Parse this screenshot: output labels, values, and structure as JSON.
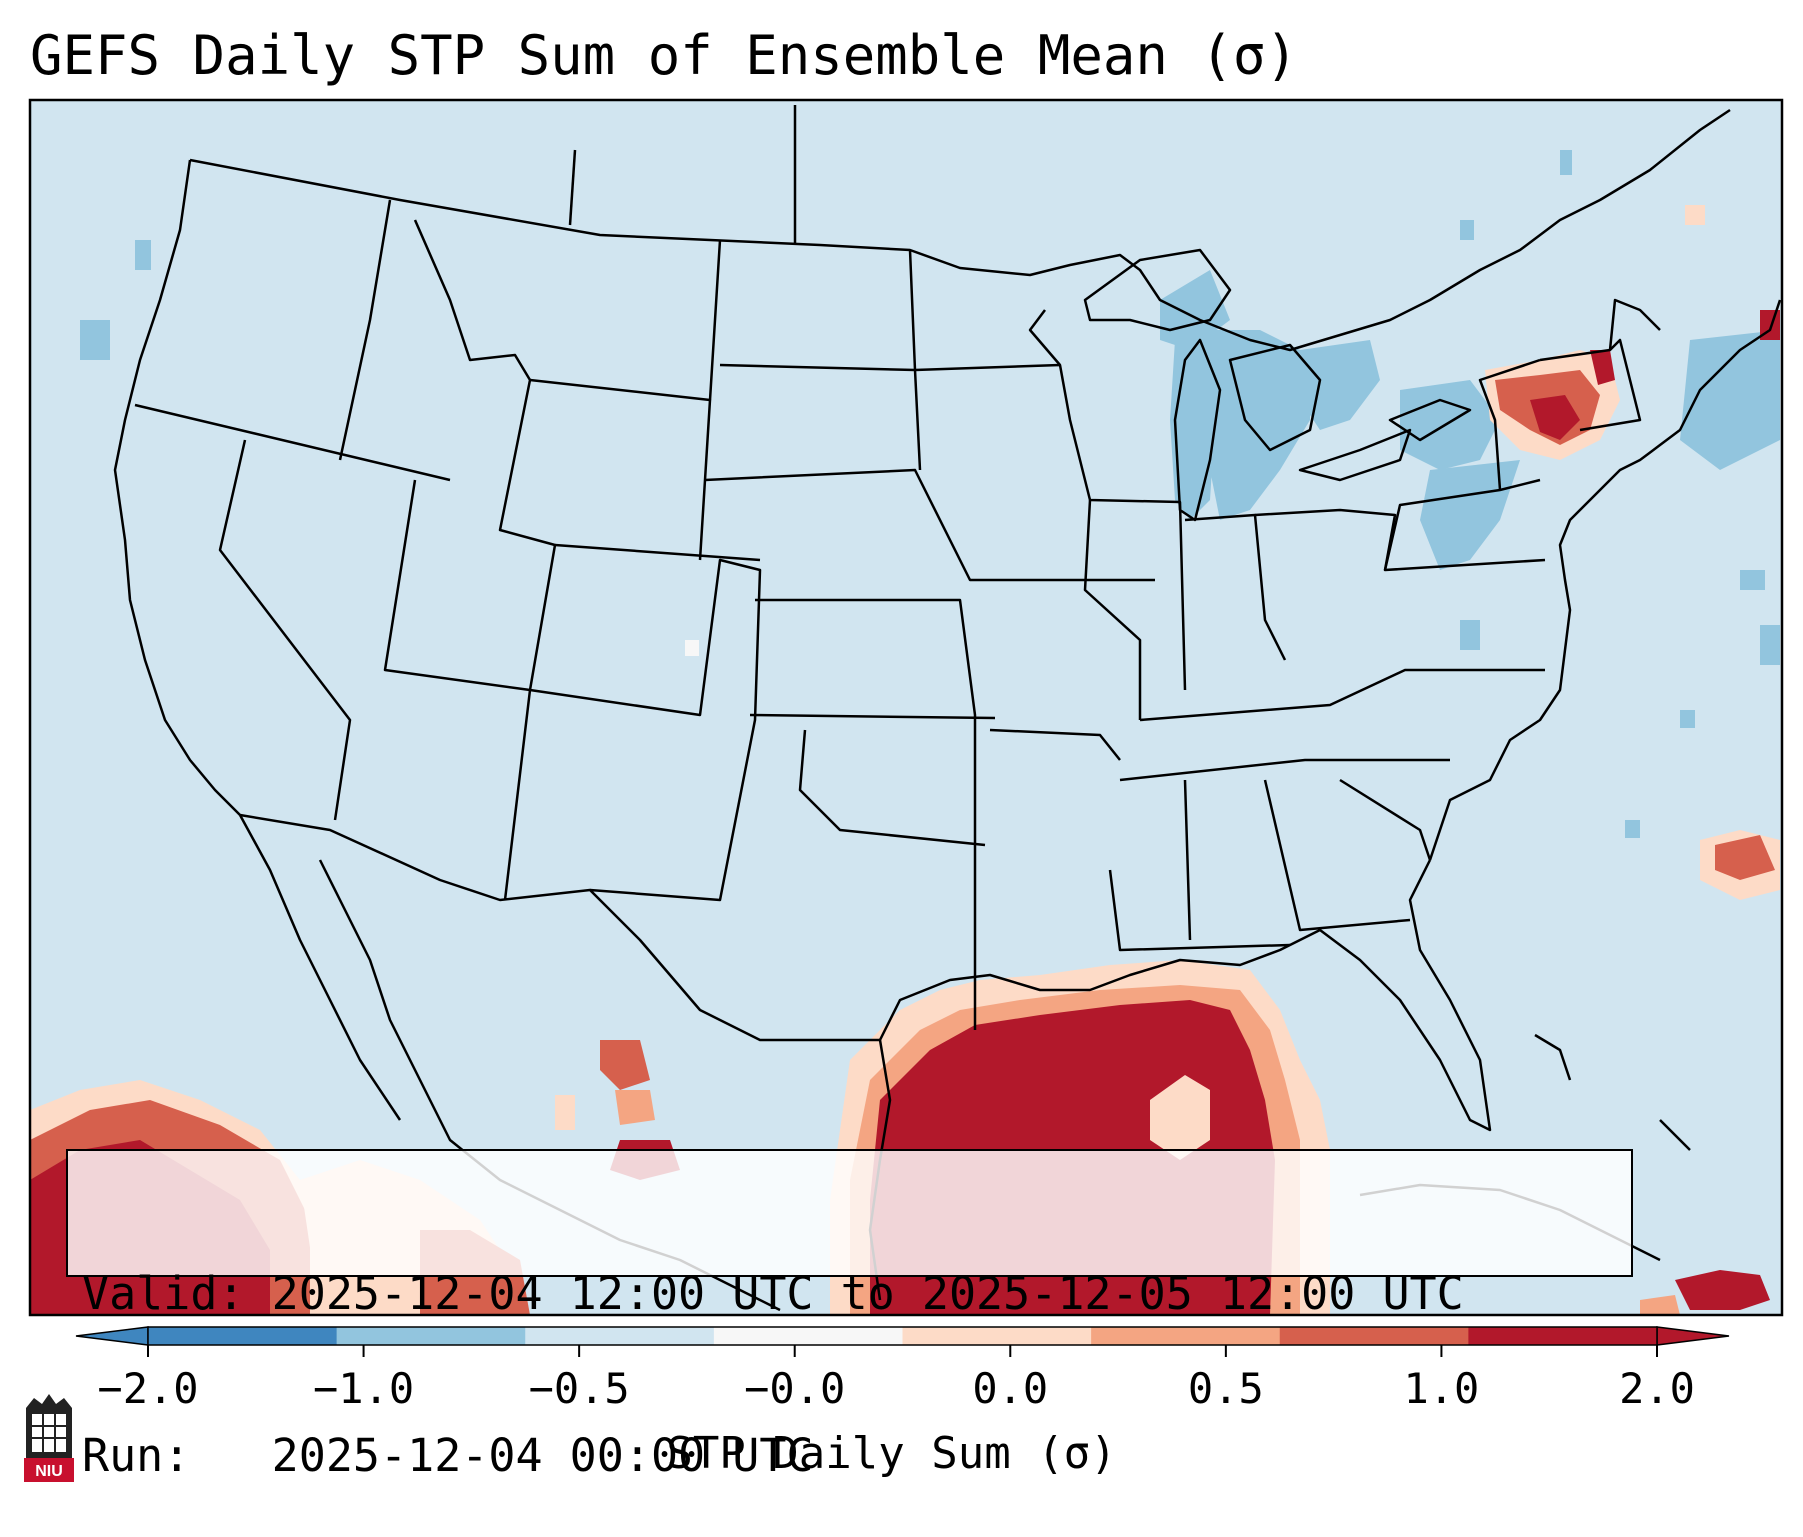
{
  "title": "GEFS Daily STP Sum of Ensemble Mean (σ)",
  "info": {
    "valid_label": "Valid:",
    "valid_value": "2025-12-04 12:00 UTC to 2025-12-05 12:00 UTC",
    "run_label": "Run:",
    "run_value": "2025-12-04 00:00 UTC"
  },
  "colorbar": {
    "label": "STP Daily Sum (σ)",
    "ticks": [
      "−2.0",
      "−1.0",
      "−0.5",
      "−0.0",
      "0.0",
      "0.5",
      "1.0",
      "2.0"
    ],
    "bin_colors": [
      "#3f86bf",
      "#92c5de",
      "#d1e5f0",
      "#f7f7f7",
      "#fddbc7",
      "#f4a582",
      "#d6604d",
      "#b2182b"
    ],
    "extend": "both"
  },
  "map": {
    "projection": "Lambert Conformal (CONUS)",
    "background_color": "#d1e5f0",
    "dominant_field": "-0.5 to -0.0 over most of domain",
    "positive_regions": [
      "northern Gulf of Mexico",
      "southwest Mexico / eastern Pacific",
      "Hudson Valley / southern New England",
      "western Atlantic east of Georgia",
      "Hispaniola"
    ],
    "negative_regions": [
      "Great Lakes",
      "Pennsylvania / New York",
      "western Atlantic off New England"
    ]
  },
  "logo": {
    "name": "NIU",
    "text": "NIU"
  }
}
